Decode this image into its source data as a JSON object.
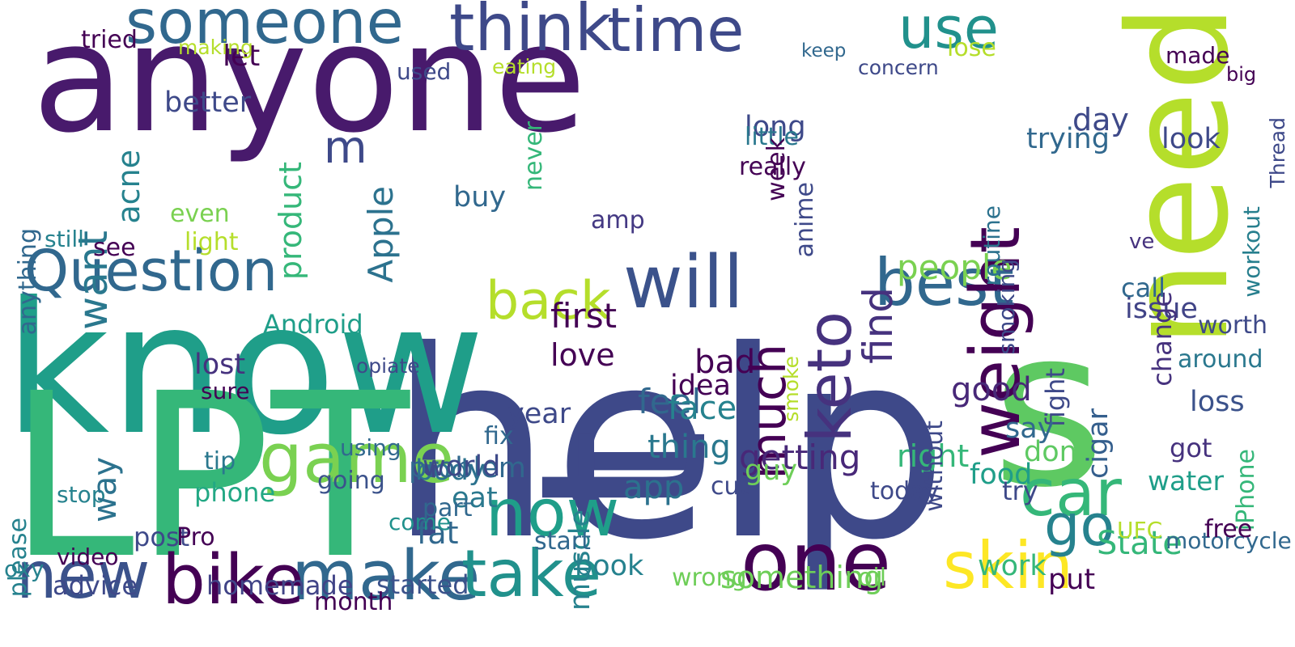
{
  "palette": [
    "#440154",
    "#482878",
    "#3e4989",
    "#31688e",
    "#26828e",
    "#1f9e89",
    "#35b779",
    "#6ece58",
    "#b5de2b",
    "#fde725"
  ],
  "words": [
    {
      "text": "anyone",
      "color": "#481a6c"
    },
    {
      "text": "help",
      "color": "#3e4989"
    },
    {
      "text": "know",
      "color": "#1f9e89"
    },
    {
      "text": "need",
      "color": "#b5de2b"
    },
    {
      "text": "LPT",
      "color": "#35b779"
    },
    {
      "text": "s",
      "color": "#5ec962"
    },
    {
      "text": "t",
      "color": "#3e4989"
    },
    {
      "text": "Question",
      "color": "#31688e"
    },
    {
      "text": "make",
      "color": "#31688e"
    },
    {
      "text": "bike",
      "color": "#440154"
    },
    {
      "text": "new",
      "color": "#3b528b"
    },
    {
      "text": "one",
      "color": "#440154"
    },
    {
      "text": "best",
      "color": "#31688e"
    },
    {
      "text": "someone",
      "color": "#31688e"
    },
    {
      "text": "think",
      "color": "#3e4989"
    },
    {
      "text": "time",
      "color": "#3e4989"
    },
    {
      "text": "use",
      "color": "#21918c"
    },
    {
      "text": "will",
      "color": "#3b528b"
    },
    {
      "text": "weight",
      "color": "#440154"
    },
    {
      "text": "keto",
      "color": "#46327e"
    },
    {
      "text": "car",
      "color": "#35b779"
    },
    {
      "text": "skin",
      "color": "#fde725"
    },
    {
      "text": "game",
      "color": "#7ad151"
    },
    {
      "text": "back",
      "color": "#b5de2b"
    },
    {
      "text": "now",
      "color": "#1f9e89"
    },
    {
      "text": "take",
      "color": "#21918c"
    },
    {
      "text": "much",
      "color": "#440154"
    },
    {
      "text": "want",
      "color": "#2a788e"
    },
    {
      "text": "go",
      "color": "#26828e"
    },
    {
      "text": "find",
      "color": "#46327e"
    },
    {
      "text": "Apple",
      "color": "#2c728e"
    },
    {
      "text": "acne",
      "color": "#26828e"
    },
    {
      "text": "product",
      "color": "#35b779"
    },
    {
      "text": "people",
      "color": "#7ad151"
    },
    {
      "text": "first",
      "color": "#440154"
    },
    {
      "text": "getting",
      "color": "#482878"
    },
    {
      "text": "Android",
      "color": "#1f9e89"
    },
    {
      "text": "advice",
      "color": "#3e4989"
    },
    {
      "text": "homemade",
      "color": "#414487"
    },
    {
      "text": "phone",
      "color": "#22a884"
    },
    {
      "text": "bad",
      "color": "#440154"
    },
    {
      "text": "good",
      "color": "#482878"
    },
    {
      "text": "feel",
      "color": "#31688e"
    },
    {
      "text": "amp",
      "color": "#443983"
    },
    {
      "text": "day",
      "color": "#3e4989"
    },
    {
      "text": "look",
      "color": "#3e4989"
    },
    {
      "text": "love",
      "color": "#440154"
    },
    {
      "text": "thing",
      "color": "#2a788e"
    },
    {
      "text": "body",
      "color": "#2c728e"
    },
    {
      "text": "fat",
      "color": "#31688e"
    },
    {
      "text": "food",
      "color": "#1f9e89"
    },
    {
      "text": "water",
      "color": "#1f9e89"
    },
    {
      "text": "State",
      "color": "#35b779"
    },
    {
      "text": "work",
      "color": "#35b779"
    },
    {
      "text": "app",
      "color": "#2c728e"
    },
    {
      "text": "face",
      "color": "#26828e"
    },
    {
      "text": "book",
      "color": "#26828e"
    },
    {
      "text": "right",
      "color": "#35b779"
    },
    {
      "text": "started",
      "color": "#3b528b"
    },
    {
      "text": "month",
      "color": "#440154"
    },
    {
      "text": "something",
      "color": "#6ece58"
    },
    {
      "text": "issue",
      "color": "#414487"
    },
    {
      "text": "loss",
      "color": "#3b528b"
    },
    {
      "text": "got",
      "color": "#46327e"
    },
    {
      "text": "fight",
      "color": "#3e4989"
    },
    {
      "text": "cigar",
      "color": "#355f8d"
    },
    {
      "text": "routine",
      "color": "#2c728e"
    },
    {
      "text": "trying",
      "color": "#31688e"
    },
    {
      "text": "change",
      "color": "#46327e"
    },
    {
      "text": "workout",
      "color": "#277f8e"
    },
    {
      "text": "Thread",
      "color": "#3e4989"
    },
    {
      "text": "iPhone",
      "color": "#35b779"
    },
    {
      "text": "muscle",
      "color": "#26828e"
    },
    {
      "text": "start",
      "color": "#31688e"
    },
    {
      "text": "fix",
      "color": "#31688e"
    },
    {
      "text": "using",
      "color": "#31688e"
    },
    {
      "text": "going",
      "color": "#3b528b"
    },
    {
      "text": "stop",
      "color": "#26828e"
    },
    {
      "text": "please",
      "color": "#26828e"
    },
    {
      "text": "way",
      "color": "#2c728e"
    },
    {
      "text": "anything",
      "color": "#31688e"
    },
    {
      "text": "still",
      "color": "#26828e"
    },
    {
      "text": "better",
      "color": "#3e4989"
    },
    {
      "text": "tried",
      "color": "#440154"
    },
    {
      "text": "let",
      "color": "#440154"
    },
    {
      "text": "concern",
      "color": "#3e4989"
    },
    {
      "text": "keep",
      "color": "#31688e"
    },
    {
      "text": "long",
      "color": "#3e4989"
    },
    {
      "text": "made",
      "color": "#440154"
    },
    {
      "text": "lose",
      "color": "#b5de2b"
    },
    {
      "text": "used",
      "color": "#3e4989"
    },
    {
      "text": "even",
      "color": "#7ad151"
    },
    {
      "text": "buy",
      "color": "#31688e"
    },
    {
      "text": "never",
      "color": "#35b779"
    },
    {
      "text": "little",
      "color": "#2a788e"
    },
    {
      "text": "week",
      "color": "#440154"
    },
    {
      "text": "really",
      "color": "#440154"
    },
    {
      "text": "lost",
      "color": "#46327e"
    },
    {
      "text": "sure",
      "color": "#440154"
    },
    {
      "text": "don",
      "color": "#5ec962"
    },
    {
      "text": "say",
      "color": "#31688e"
    },
    {
      "text": "try",
      "color": "#3e4989"
    },
    {
      "text": "put",
      "color": "#440154"
    },
    {
      "text": "guy",
      "color": "#6ece58"
    },
    {
      "text": "year",
      "color": "#3e4989"
    },
    {
      "text": "come",
      "color": "#21918c"
    },
    {
      "text": "problem",
      "color": "#31688e"
    },
    {
      "text": "smoke",
      "color": "#b5de2b"
    },
    {
      "text": "post",
      "color": "#3e4989"
    },
    {
      "text": "tip",
      "color": "#2a788e"
    },
    {
      "text": "eat",
      "color": "#2a788e"
    },
    {
      "text": "idea",
      "color": "#440154"
    },
    {
      "text": "world",
      "color": "#3e4989"
    },
    {
      "text": "part",
      "color": "#31688e"
    },
    {
      "text": "see",
      "color": "#440154"
    },
    {
      "text": "light",
      "color": "#b5de2b"
    },
    {
      "text": "making",
      "color": "#b5de2b"
    },
    {
      "text": "eating",
      "color": "#b5de2b"
    },
    {
      "text": "cut",
      "color": "#3e4989"
    },
    {
      "text": "m",
      "color": "#3e4989"
    },
    {
      "text": "oxy",
      "color": "#26828e"
    },
    {
      "text": "video",
      "color": "#440154"
    },
    {
      "text": "opiate",
      "color": "#3e4989"
    },
    {
      "text": "Pro",
      "color": "#440154"
    },
    {
      "text": "wrong",
      "color": "#6ece58"
    },
    {
      "text": "without",
      "color": "#3e4989"
    },
    {
      "text": "today",
      "color": "#3e4989"
    },
    {
      "text": "call",
      "color": "#31688e"
    },
    {
      "text": "around",
      "color": "#2a788e"
    },
    {
      "text": "worth",
      "color": "#3e4989"
    },
    {
      "text": "big",
      "color": "#440154"
    },
    {
      "text": "ve",
      "color": "#46327e"
    },
    {
      "text": "motorcycle",
      "color": "#31688e"
    },
    {
      "text": "UFC",
      "color": "#b5de2b"
    },
    {
      "text": "oil",
      "color": "#6ece58"
    },
    {
      "text": "anime",
      "color": "#3e4989"
    },
    {
      "text": "smoking",
      "color": "#3e4989"
    },
    {
      "text": "free",
      "color": "#440154"
    }
  ]
}
